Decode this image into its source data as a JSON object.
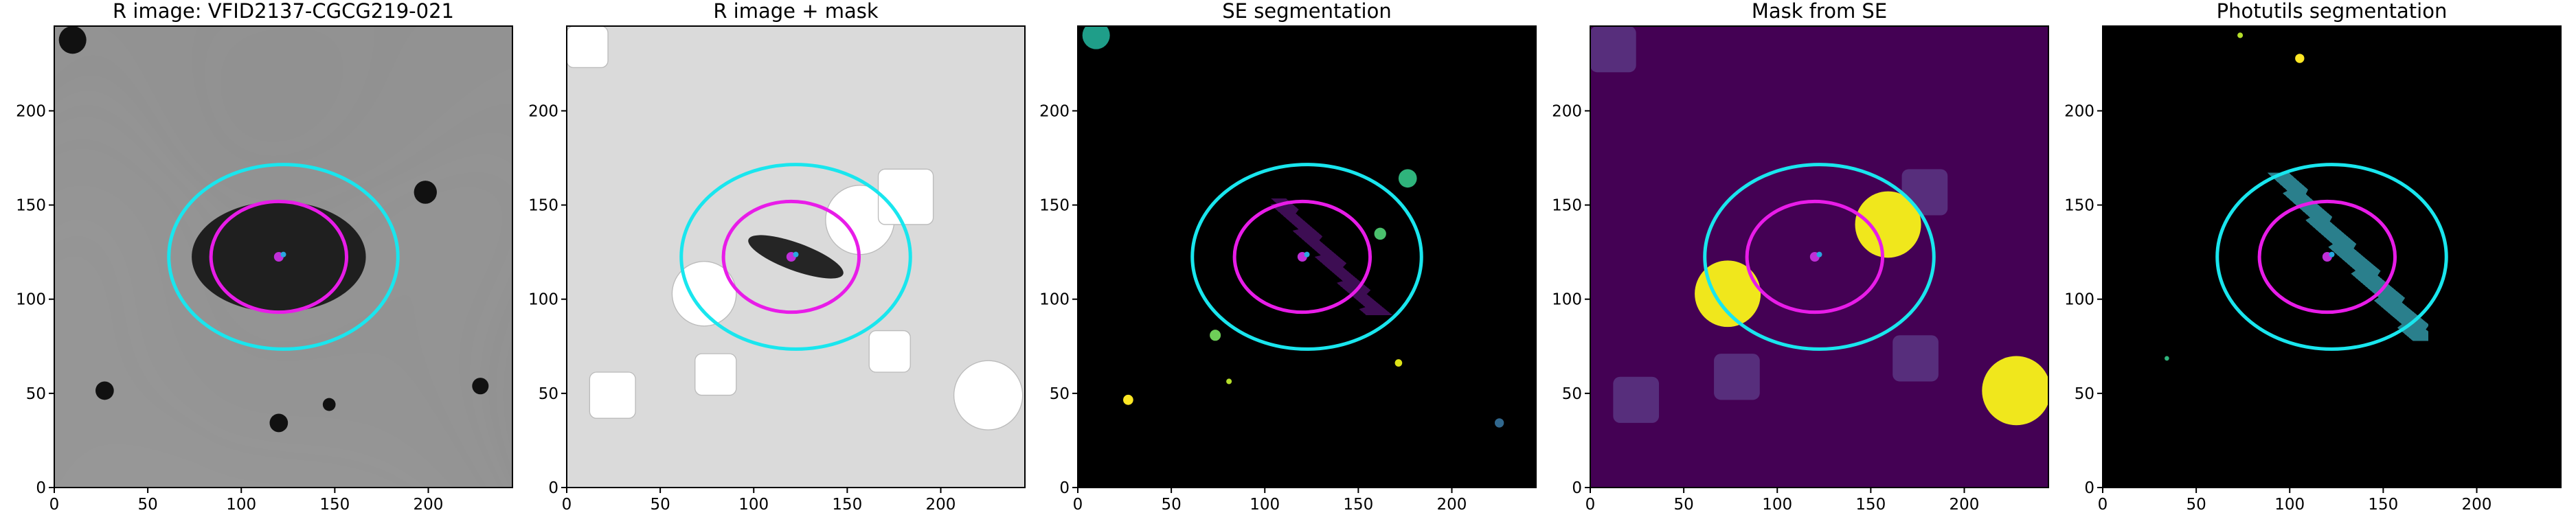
{
  "chart_data": [
    {
      "type": "image",
      "title": "R image: VFID2137-CGCG219-021",
      "xlim": [
        0,
        245
      ],
      "ylim": [
        0,
        245
      ],
      "xticks": [
        0,
        50,
        100,
        150,
        200
      ],
      "yticks": [
        0,
        50,
        100,
        150,
        200
      ]
    },
    {
      "type": "image",
      "title": "R image + mask",
      "xlim": [
        0,
        245
      ],
      "ylim": [
        0,
        245
      ],
      "xticks": [
        0,
        50,
        100,
        150,
        200
      ],
      "yticks": [
        0,
        50,
        100,
        150,
        200
      ]
    },
    {
      "type": "image",
      "title": "SE segmentation",
      "xlim": [
        0,
        245
      ],
      "ylim": [
        0,
        245
      ],
      "xticks": [
        0,
        50,
        100,
        150,
        200
      ],
      "yticks": [
        0,
        50,
        100,
        150,
        200
      ]
    },
    {
      "type": "image",
      "title": "Mask from SE",
      "xlim": [
        0,
        245
      ],
      "ylim": [
        0,
        245
      ],
      "xticks": [
        0,
        50,
        100,
        150,
        200
      ],
      "yticks": [
        0,
        50,
        100,
        150,
        200
      ]
    },
    {
      "type": "image",
      "title": "Photutils segmentation",
      "xlim": [
        0,
        245
      ],
      "ylim": [
        0,
        245
      ],
      "xticks": [
        0,
        50,
        100,
        150,
        200
      ],
      "yticks": [
        0,
        50,
        100,
        150,
        200
      ]
    }
  ]
}
